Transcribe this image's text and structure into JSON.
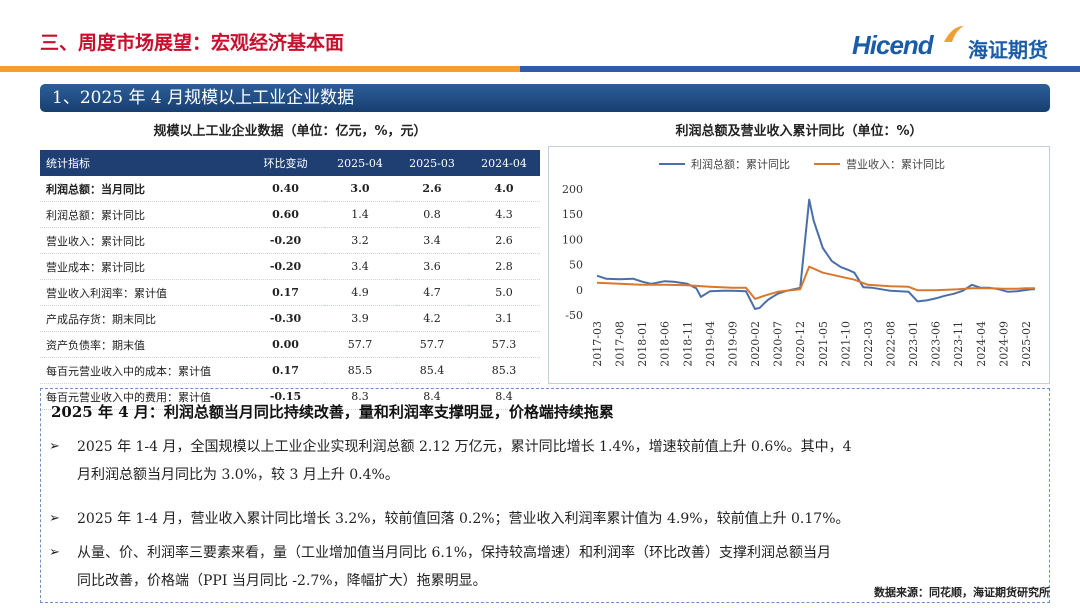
{
  "header": {
    "title": "三、周度市场展望：宏观经济基本面",
    "logo_en": "Hicend",
    "logo_cn": "海证期货"
  },
  "section_title": "1、2025 年 4 月规模以上工业企业数据",
  "table": {
    "caption": "规模以上工业企业数据（单位：亿元，%，元）",
    "headers": [
      "统计指标",
      "环比变动",
      "2025-04",
      "2025-03",
      "2024-04"
    ],
    "rows": [
      [
        "利润总额：当月同比",
        "0.40",
        "3.0",
        "2.6",
        "4.0"
      ],
      [
        "利润总额：累计同比",
        "0.60",
        "1.4",
        "0.8",
        "4.3"
      ],
      [
        "营业收入：累计同比",
        "-0.20",
        "3.2",
        "3.4",
        "2.6"
      ],
      [
        "营业成本：累计同比",
        "-0.20",
        "3.4",
        "3.6",
        "2.8"
      ],
      [
        "营业收入利润率：累计值",
        "0.17",
        "4.9",
        "4.7",
        "5.0"
      ],
      [
        "产成品存货：期末同比",
        "-0.30",
        "3.9",
        "4.2",
        "3.1"
      ],
      [
        "资产负债率：期末值",
        "0.00",
        "57.7",
        "57.7",
        "57.3"
      ],
      [
        "每百元营业收入中的成本：累计值",
        "0.17",
        "85.5",
        "85.4",
        "85.3"
      ],
      [
        "每百元营业收入中的费用：累计值",
        "-0.15",
        "8.3",
        "8.4",
        "8.4"
      ]
    ]
  },
  "chart_data": {
    "type": "line",
    "title": "利润总额及营业收入累计同比（单位：%）",
    "ylim": [
      -50,
      200
    ],
    "yticks": [
      "200",
      "150",
      "100",
      "50",
      "0",
      "-50"
    ],
    "xticks": [
      "2017-03",
      "2017-08",
      "2018-01",
      "2018-06",
      "2018-11",
      "2019-04",
      "2019-09",
      "2020-02",
      "2020-07",
      "2020-12",
      "2021-05",
      "2021-10",
      "2022-03",
      "2022-08",
      "2023-01",
      "2023-06",
      "2023-11",
      "2024-04",
      "2024-09",
      "2025-02"
    ],
    "legend": "top",
    "grid": false,
    "series": [
      {
        "name": "利润总额：累计同比",
        "color": "#4a6fa8",
        "values": [
          {
            "x": "2017-03",
            "y": 28
          },
          {
            "x": "2017-05",
            "y": 22
          },
          {
            "x": "2017-08",
            "y": 21
          },
          {
            "x": "2017-11",
            "y": 22
          },
          {
            "x": "2018-01",
            "y": 16
          },
          {
            "x": "2018-03",
            "y": 12
          },
          {
            "x": "2018-06",
            "y": 17
          },
          {
            "x": "2018-08",
            "y": 16
          },
          {
            "x": "2018-11",
            "y": 12
          },
          {
            "x": "2019-01",
            "y": 3
          },
          {
            "x": "2019-02",
            "y": -14
          },
          {
            "x": "2019-04",
            "y": -3
          },
          {
            "x": "2019-07",
            "y": -2
          },
          {
            "x": "2019-09",
            "y": -2
          },
          {
            "x": "2019-12",
            "y": -3
          },
          {
            "x": "2020-02",
            "y": -38
          },
          {
            "x": "2020-03",
            "y": -36
          },
          {
            "x": "2020-04",
            "y": -27
          },
          {
            "x": "2020-05",
            "y": -19
          },
          {
            "x": "2020-07",
            "y": -8
          },
          {
            "x": "2020-09",
            "y": -2
          },
          {
            "x": "2020-12",
            "y": 4
          },
          {
            "x": "2021-02",
            "y": 179
          },
          {
            "x": "2021-03",
            "y": 137
          },
          {
            "x": "2021-05",
            "y": 83
          },
          {
            "x": "2021-07",
            "y": 57
          },
          {
            "x": "2021-09",
            "y": 45
          },
          {
            "x": "2021-11",
            "y": 38
          },
          {
            "x": "2021-12",
            "y": 34
          },
          {
            "x": "2022-02",
            "y": 5
          },
          {
            "x": "2022-04",
            "y": 4
          },
          {
            "x": "2022-06",
            "y": 1
          },
          {
            "x": "2022-08",
            "y": -2
          },
          {
            "x": "2022-10",
            "y": -3
          },
          {
            "x": "2022-12",
            "y": -4
          },
          {
            "x": "2023-02",
            "y": -23
          },
          {
            "x": "2023-04",
            "y": -21
          },
          {
            "x": "2023-06",
            "y": -17
          },
          {
            "x": "2023-08",
            "y": -12
          },
          {
            "x": "2023-10",
            "y": -8
          },
          {
            "x": "2023-12",
            "y": -2
          },
          {
            "x": "2024-02",
            "y": 10
          },
          {
            "x": "2024-04",
            "y": 4
          },
          {
            "x": "2024-06",
            "y": 4
          },
          {
            "x": "2024-08",
            "y": 1
          },
          {
            "x": "2024-10",
            "y": -4
          },
          {
            "x": "2024-12",
            "y": -3
          },
          {
            "x": "2025-02",
            "y": -0.3
          },
          {
            "x": "2025-03",
            "y": 0.8
          },
          {
            "x": "2025-04",
            "y": 1.4
          }
        ]
      },
      {
        "name": "营业收入：累计同比",
        "color": "#d9782d",
        "values": [
          {
            "x": "2017-03",
            "y": 14
          },
          {
            "x": "2017-08",
            "y": 12
          },
          {
            "x": "2018-01",
            "y": 10
          },
          {
            "x": "2018-06",
            "y": 10
          },
          {
            "x": "2018-11",
            "y": 9
          },
          {
            "x": "2019-04",
            "y": 6
          },
          {
            "x": "2019-09",
            "y": 4
          },
          {
            "x": "2019-12",
            "y": 4
          },
          {
            "x": "2020-02",
            "y": -18
          },
          {
            "x": "2020-04",
            "y": -12
          },
          {
            "x": "2020-07",
            "y": -4
          },
          {
            "x": "2020-12",
            "y": 1
          },
          {
            "x": "2021-02",
            "y": 46
          },
          {
            "x": "2021-05",
            "y": 34
          },
          {
            "x": "2021-10",
            "y": 24
          },
          {
            "x": "2021-12",
            "y": 20
          },
          {
            "x": "2022-03",
            "y": 10
          },
          {
            "x": "2022-08",
            "y": 7
          },
          {
            "x": "2022-12",
            "y": 6
          },
          {
            "x": "2023-02",
            "y": -1
          },
          {
            "x": "2023-06",
            "y": -1
          },
          {
            "x": "2023-11",
            "y": 1
          },
          {
            "x": "2024-02",
            "y": 3
          },
          {
            "x": "2024-06",
            "y": 3
          },
          {
            "x": "2024-09",
            "y": 2
          },
          {
            "x": "2024-12",
            "y": 2
          },
          {
            "x": "2025-02",
            "y": 3
          },
          {
            "x": "2025-04",
            "y": 3.2
          }
        ]
      }
    ]
  },
  "summary": {
    "heading": "2025 年 4 月：利润总额当月同比持续改善，量和利润率支撑明显，价格端持续拖累",
    "bullets": [
      {
        "line1": "2025 年 1-4 月，全国规模以上工业企业实现利润总额 2.12 万亿元，累计同比增长 1.4%，增速较前值上升 0.6%。其中，4",
        "line2": "月利润总额当月同比为 3.0%，较 3 月上升 0.4%。"
      },
      {
        "line1": "2025 年 1-4 月，营业收入累计同比增长 3.2%，较前值回落 0.2%；营业收入利润率累计值为 4.9%，较前值上升 0.17%。",
        "line2": ""
      },
      {
        "line1": "从量、价、利润率三要素来看，量（工业增加值当月同比 6.1%，保持较高增速）和利润率（环比改善）支撑利润总额当月",
        "line2": "同比改善，价格端（PPI 当月同比 -2.7%，降幅扩大）拖累明显。"
      }
    ],
    "bullet_glyph": "➢"
  },
  "source": "数据来源：同花顺，海证期货研究所",
  "colors": {
    "accent_red": "#c8102e",
    "navy": "#1f3f73",
    "blue": "#1a5ca8",
    "band_orange": "#f0a030",
    "green": "#2e8b3a"
  }
}
